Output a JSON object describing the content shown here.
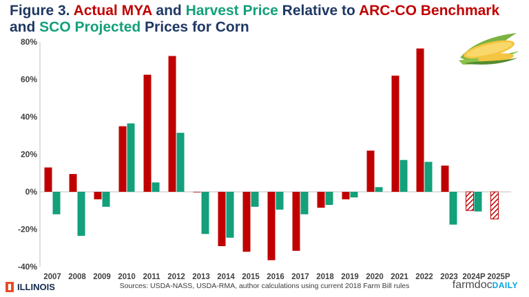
{
  "title": {
    "parts": [
      {
        "text": "Figure 3. ",
        "color": "#1f3864"
      },
      {
        "text": "Actual MYA",
        "color": "#c00000"
      },
      {
        "text": " and ",
        "color": "#1f3864"
      },
      {
        "text": "Harvest Price",
        "color": "#13a07a"
      },
      {
        "text": " Relative to ",
        "color": "#1f3864"
      },
      {
        "text": "ARC-CO Benchmark",
        "color": "#c00000"
      },
      {
        "text": " and ",
        "color": "#1f3864"
      },
      {
        "text": "SCO Projected",
        "color": "#13a07a"
      },
      {
        "text": " Prices for Corn",
        "color": "#1f3864"
      }
    ]
  },
  "chart_data": {
    "type": "bar",
    "categories": [
      "2007",
      "2008",
      "2009",
      "2010",
      "2011",
      "2012",
      "2013",
      "2014",
      "2015",
      "2016",
      "2017",
      "2018",
      "2019",
      "2020",
      "2021",
      "2022",
      "2023",
      "2024P",
      "2025P"
    ],
    "series": [
      {
        "color": "#c00000",
        "values": [
          13,
          9.5,
          -4,
          35,
          62.5,
          72.5,
          0,
          -29,
          -32,
          -36.5,
          -31.5,
          -8.5,
          -4,
          22,
          62,
          76.5,
          14,
          -10,
          -14.5
        ],
        "projected": [
          false,
          false,
          false,
          false,
          false,
          false,
          false,
          false,
          false,
          false,
          false,
          false,
          false,
          false,
          false,
          false,
          false,
          true,
          true
        ]
      },
      {
        "color": "#13a07a",
        "values": [
          -12,
          -23.5,
          -8,
          36.5,
          5,
          31.5,
          -22.5,
          -24.5,
          -8,
          -9.5,
          -12,
          -7,
          -3,
          2.5,
          17,
          16,
          -17.5,
          -10.5,
          null
        ]
      }
    ],
    "ylim": [
      -40,
      80
    ],
    "yticks": [
      -40,
      -20,
      0,
      20,
      40,
      60,
      80
    ],
    "ytick_labels": [
      "-40%",
      "-20%",
      "0%",
      "20%",
      "40%",
      "60%",
      "80%"
    ],
    "grid": false,
    "xlabel": "",
    "ylabel": ""
  },
  "footer": {
    "sources": "Sources: USDA-NASS, USDA-RMA, author calculations using current 2018 Farm Bill rules",
    "illinois": "ILLINOIS",
    "farmdoc": "farmdoc",
    "daily": "DAILY"
  },
  "icons": {
    "logo": "corn-icon",
    "university": "illinois-mark-icon"
  }
}
